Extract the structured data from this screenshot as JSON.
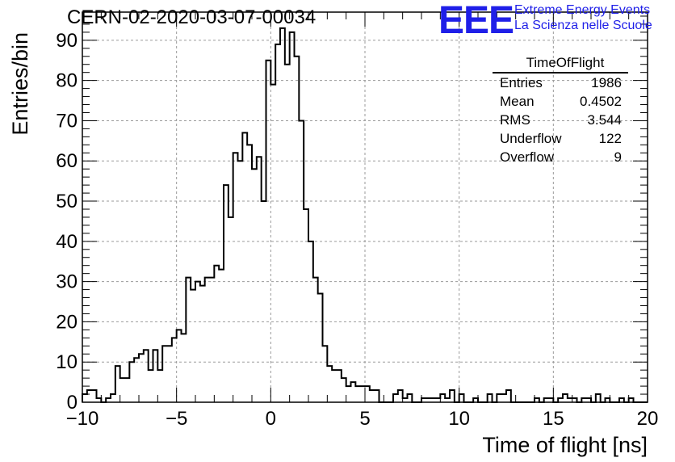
{
  "header": {
    "run_title": "CERN-02-2020-03-07-00034",
    "logo": "EEE",
    "logo_line1": "Extreme Energy Events",
    "logo_line2": "La Scienza nelle Scuole"
  },
  "stats_box": {
    "title": "TimeOfFlight",
    "rows": [
      {
        "label": "Entries",
        "value": "1986"
      },
      {
        "label": "Mean",
        "value": "0.4502"
      },
      {
        "label": "RMS",
        "value": "3.544"
      },
      {
        "label": "Underflow",
        "value": "122"
      },
      {
        "label": "Overflow",
        "value": "9"
      }
    ]
  },
  "chart_data": {
    "type": "bar",
    "style": "step-histogram",
    "title": "CERN-02-2020-03-07-00034",
    "xlabel": "Time of flight [ns]",
    "ylabel": "Entries/bin",
    "xlim": [
      -10,
      20
    ],
    "ylim": [
      0,
      97
    ],
    "bin_width": 0.25,
    "x_ticks": [
      "−10",
      "−5",
      "0",
      "5",
      "10",
      "15",
      "20"
    ],
    "y_ticks": [
      "0",
      "10",
      "20",
      "30",
      "40",
      "50",
      "60",
      "70",
      "80",
      "90"
    ],
    "grid": true,
    "values": [
      2,
      3,
      3,
      1,
      0,
      1,
      2,
      9,
      6,
      6,
      10,
      11,
      12,
      13,
      8,
      13,
      8,
      14,
      14,
      16,
      18,
      17,
      31,
      28,
      30,
      29,
      31,
      31,
      34,
      33,
      54,
      46,
      62,
      60,
      67,
      64,
      58,
      61,
      50,
      85,
      79,
      89,
      93,
      84,
      92,
      86,
      70,
      48,
      40,
      31,
      27,
      14,
      9,
      8,
      8,
      6,
      4,
      5,
      4,
      4,
      4,
      3,
      3,
      0,
      0,
      0,
      2,
      3,
      1,
      2,
      0,
      0,
      1,
      1,
      1,
      1,
      2,
      1,
      3,
      0,
      2,
      0,
      0,
      1,
      0,
      0,
      2,
      0,
      2,
      2,
      3,
      0,
      0,
      0,
      0,
      0,
      1,
      0,
      1,
      1,
      0,
      1,
      2,
      1,
      1,
      0,
      1,
      1,
      0,
      2,
      0,
      1,
      0,
      0,
      1,
      0,
      1,
      0,
      0,
      0
    ]
  }
}
